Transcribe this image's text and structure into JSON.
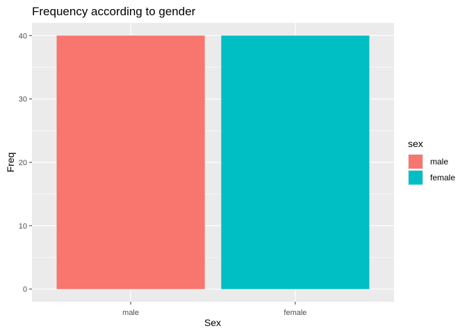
{
  "chart_data": {
    "type": "bar",
    "title": "Frequency according to gender",
    "xlabel": "Sex",
    "ylabel": "Freq",
    "categories": [
      "male",
      "female"
    ],
    "values": [
      40,
      40
    ],
    "colors": [
      "#F8766D",
      "#00BFC4"
    ],
    "ylim": [
      -2,
      42
    ],
    "yticks": [
      0,
      10,
      20,
      30,
      40
    ],
    "grid": true,
    "panel_background": "#EBEBEB",
    "legend": {
      "title": "sex",
      "placement": "right",
      "entries": [
        {
          "label": "male",
          "color": "#F8766D"
        },
        {
          "label": "female",
          "color": "#00BFC4"
        }
      ]
    }
  }
}
